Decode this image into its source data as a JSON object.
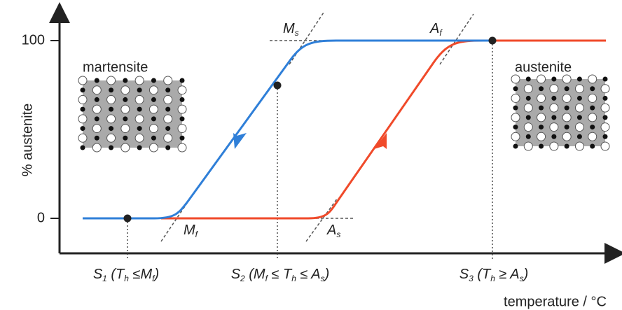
{
  "y_axis": {
    "label": "% austenite",
    "ticks": [
      "0",
      "100"
    ]
  },
  "x_axis": {
    "label": "temperature  / °C"
  },
  "phases": {
    "left": "martensite",
    "right": "austenite"
  },
  "markers": {
    "ms": [
      "M",
      "s"
    ],
    "mf": [
      "M",
      "f"
    ],
    "as": [
      "A",
      "s"
    ],
    "af": [
      "A",
      "f"
    ]
  },
  "states": [
    [
      "S",
      "1",
      " (T",
      "h",
      " ≤M",
      "f",
      ")"
    ],
    [
      "S",
      "2",
      " (M",
      "f",
      " ≤ T",
      "h",
      " ≤ A",
      "s",
      ")"
    ],
    [
      "S",
      "3",
      " (T",
      "h",
      " ≥ A",
      "s",
      ")"
    ]
  ]
}
